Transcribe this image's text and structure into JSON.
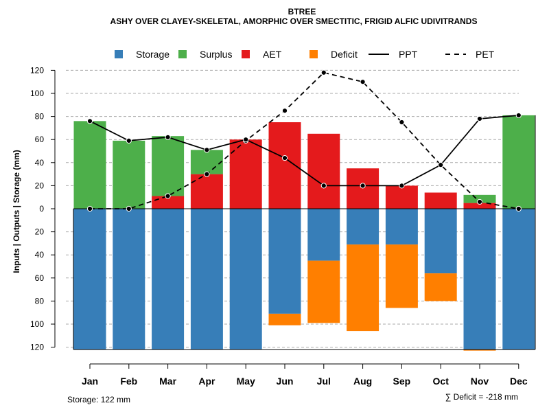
{
  "chart_data": {
    "type": "bar",
    "title": "BTREE",
    "subtitle": "ASHY OVER CLAYEY-SKELETAL, AMORPHIC OVER SMECTITIC, FRIGID ALFIC UDIVITRANDS",
    "ylabel": "Inputs | Outputs | Storage    (mm)",
    "categories": [
      "Jan",
      "Feb",
      "Mar",
      "Apr",
      "May",
      "Jun",
      "Jul",
      "Aug",
      "Sep",
      "Oct",
      "Nov",
      "Dec"
    ],
    "ylim": [
      -122,
      120
    ],
    "yticks": [
      120,
      100,
      80,
      60,
      40,
      20,
      0,
      -20,
      -40,
      -60,
      -80,
      -100,
      -120
    ],
    "ytick_labels": [
      "120",
      "100",
      "80",
      "60",
      "40",
      "20",
      "0",
      "20",
      "40",
      "60",
      "80",
      "100",
      "120"
    ],
    "legend": [
      {
        "key": "storage",
        "label": "Storage",
        "kind": "box",
        "color": "#377EB8"
      },
      {
        "key": "surplus",
        "label": "Surplus",
        "kind": "box",
        "color": "#4DAF4A"
      },
      {
        "key": "aet",
        "label": "AET",
        "kind": "box",
        "color": "#E41A1C"
      },
      {
        "key": "deficit",
        "label": "Deficit",
        "kind": "box",
        "color": "#FF7F00"
      },
      {
        "key": "ppt",
        "label": "PPT",
        "kind": "solid",
        "color": "#000000"
      },
      {
        "key": "pet",
        "label": "PET",
        "kind": "dashed",
        "color": "#000000"
      }
    ],
    "series": [
      {
        "name": "AET",
        "key": "aet",
        "color": "#E41A1C",
        "values": [
          0,
          0,
          11,
          30,
          60,
          75,
          65,
          35,
          20,
          14,
          5,
          0
        ]
      },
      {
        "name": "Surplus",
        "key": "surplus",
        "color": "#4DAF4A",
        "values": [
          76,
          59,
          52,
          21,
          0,
          0,
          0,
          0,
          0,
          0,
          7,
          81
        ]
      },
      {
        "name": "Storage",
        "key": "storage",
        "color": "#377EB8",
        "values": [
          122,
          122,
          122,
          122,
          122,
          91,
          45,
          31,
          31,
          56,
          122,
          122
        ]
      },
      {
        "name": "Deficit",
        "key": "deficit",
        "color": "#FF7F00",
        "values": [
          0,
          0,
          0,
          0,
          0,
          10,
          54,
          75,
          55,
          24,
          1,
          0
        ]
      },
      {
        "name": "PPT",
        "key": "ppt",
        "color": "#000000",
        "values": [
          76,
          59,
          62,
          51,
          60,
          44,
          20,
          20,
          20,
          38,
          78,
          81
        ]
      },
      {
        "name": "PET",
        "key": "pet",
        "color": "#000000",
        "values": [
          0,
          0,
          11,
          30,
          59,
          85,
          118,
          110,
          75,
          38,
          6,
          0
        ]
      }
    ],
    "storage_label": "Storage: 122 mm",
    "deficit_label": "∑ Deficit = -218 mm",
    "grid": true
  }
}
